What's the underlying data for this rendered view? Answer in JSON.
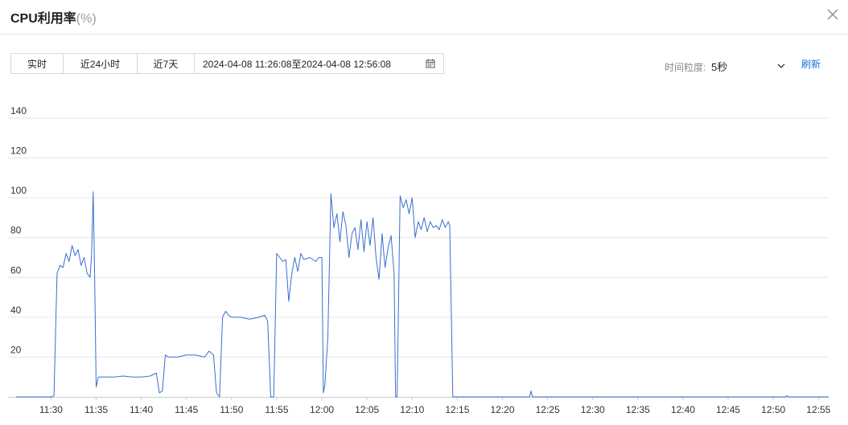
{
  "header": {
    "title": "CPU利用率",
    "unit": "(%)"
  },
  "toolbar": {
    "realtime_label": "实时",
    "h24_label": "近24小时",
    "d7_label": "近7天",
    "range_text": "2024-04-08 11:26:08至2024-04-08 12:56:08"
  },
  "granularity": {
    "label": "时间粒度:",
    "value": "5秒"
  },
  "refresh_label": "刷新",
  "icons": {
    "close": "close-icon",
    "calendar": "calendar-icon",
    "dropdown": "chevron-down-icon"
  },
  "colors": {
    "line": "#3a6fd0",
    "grid": "#e6e6e6",
    "accent": "#1a6fe0"
  },
  "chart_data": {
    "type": "line",
    "title": "",
    "xlabel": "",
    "ylabel": "",
    "ylim": [
      0,
      140
    ],
    "grid": true,
    "yticks": [
      20,
      40,
      60,
      80,
      100,
      120,
      140
    ],
    "xticks": [
      "11:30",
      "11:35",
      "11:40",
      "11:45",
      "11:50",
      "11:55",
      "12:00",
      "12:05",
      "12:10",
      "12:15",
      "12:20",
      "12:25",
      "12:30",
      "12:35",
      "12:40",
      "12:45",
      "12:50",
      "12:55"
    ],
    "x_unit": "time of day (2024-04-08)",
    "x_range": [
      "11:26:08",
      "12:56:08"
    ],
    "series": [
      {
        "points": [
          [
            "11:26:08",
            0
          ],
          [
            "11:30:00",
            0
          ],
          [
            "11:30:20",
            0.5
          ],
          [
            "11:30:40",
            62
          ],
          [
            "11:31:00",
            66
          ],
          [
            "11:31:20",
            65
          ],
          [
            "11:31:40",
            72
          ],
          [
            "11:32:00",
            68
          ],
          [
            "11:32:20",
            76
          ],
          [
            "11:32:40",
            71
          ],
          [
            "11:33:00",
            74
          ],
          [
            "11:33:20",
            66
          ],
          [
            "11:33:40",
            70
          ],
          [
            "11:34:00",
            62
          ],
          [
            "11:34:20",
            60
          ],
          [
            "11:34:30",
            72
          ],
          [
            "11:34:40",
            103
          ],
          [
            "11:34:50",
            62
          ],
          [
            "11:35:00",
            5
          ],
          [
            "11:35:15",
            10
          ],
          [
            "11:36:00",
            10
          ],
          [
            "11:37:00",
            10
          ],
          [
            "11:38:00",
            10.5
          ],
          [
            "11:39:00",
            10
          ],
          [
            "11:40:00",
            10
          ],
          [
            "11:41:00",
            10.5
          ],
          [
            "11:41:40",
            12
          ],
          [
            "11:42:00",
            2
          ],
          [
            "11:42:20",
            3
          ],
          [
            "11:42:40",
            21
          ],
          [
            "11:43:00",
            20
          ],
          [
            "11:44:00",
            20
          ],
          [
            "11:45:00",
            21
          ],
          [
            "11:46:00",
            21
          ],
          [
            "11:47:00",
            20
          ],
          [
            "11:47:30",
            23
          ],
          [
            "11:48:00",
            21
          ],
          [
            "11:48:20",
            2
          ],
          [
            "11:48:40",
            0
          ],
          [
            "11:49:00",
            40
          ],
          [
            "11:49:20",
            43
          ],
          [
            "11:49:40",
            41
          ],
          [
            "11:50:00",
            40
          ],
          [
            "11:51:00",
            40
          ],
          [
            "11:52:00",
            39
          ],
          [
            "11:53:00",
            40
          ],
          [
            "11:53:40",
            41
          ],
          [
            "11:54:00",
            38
          ],
          [
            "11:54:20",
            0
          ],
          [
            "11:54:40",
            0
          ],
          [
            "11:55:00",
            72
          ],
          [
            "11:55:20",
            70
          ],
          [
            "11:55:40",
            68
          ],
          [
            "11:56:00",
            69
          ],
          [
            "11:56:20",
            48
          ],
          [
            "11:56:40",
            62
          ],
          [
            "11:57:00",
            70
          ],
          [
            "11:57:20",
            63
          ],
          [
            "11:57:40",
            72
          ],
          [
            "11:58:00",
            69
          ],
          [
            "11:58:40",
            70
          ],
          [
            "11:59:20",
            68
          ],
          [
            "11:59:40",
            70
          ],
          [
            "12:00:00",
            70
          ],
          [
            "12:00:10",
            2
          ],
          [
            "12:00:20",
            6
          ],
          [
            "12:00:40",
            30
          ],
          [
            "12:01:00",
            102
          ],
          [
            "12:01:20",
            85
          ],
          [
            "12:01:40",
            92
          ],
          [
            "12:02:00",
            78
          ],
          [
            "12:02:20",
            93
          ],
          [
            "12:02:40",
            86
          ],
          [
            "12:03:00",
            70
          ],
          [
            "12:03:20",
            82
          ],
          [
            "12:03:40",
            85
          ],
          [
            "12:04:00",
            74
          ],
          [
            "12:04:20",
            89
          ],
          [
            "12:04:40",
            73
          ],
          [
            "12:05:00",
            88
          ],
          [
            "12:05:20",
            76
          ],
          [
            "12:05:40",
            90
          ],
          [
            "12:06:00",
            70
          ],
          [
            "12:06:20",
            59
          ],
          [
            "12:06:40",
            82
          ],
          [
            "12:07:00",
            65
          ],
          [
            "12:07:20",
            75
          ],
          [
            "12:07:40",
            81
          ],
          [
            "12:08:00",
            62
          ],
          [
            "12:08:10",
            0
          ],
          [
            "12:08:20",
            0
          ],
          [
            "12:08:40",
            101
          ],
          [
            "12:09:00",
            95
          ],
          [
            "12:09:20",
            99
          ],
          [
            "12:09:40",
            92
          ],
          [
            "12:10:00",
            100
          ],
          [
            "12:10:20",
            80
          ],
          [
            "12:10:40",
            88
          ],
          [
            "12:11:00",
            84
          ],
          [
            "12:11:20",
            90
          ],
          [
            "12:11:40",
            83
          ],
          [
            "12:12:00",
            88
          ],
          [
            "12:12:20",
            85
          ],
          [
            "12:12:40",
            86
          ],
          [
            "12:13:00",
            84
          ],
          [
            "12:13:20",
            89
          ],
          [
            "12:13:40",
            85
          ],
          [
            "12:14:00",
            88
          ],
          [
            "12:14:10",
            86
          ],
          [
            "12:14:30",
            0
          ],
          [
            "12:20:00",
            0
          ],
          [
            "12:23:00",
            0
          ],
          [
            "12:23:10",
            3
          ],
          [
            "12:23:20",
            0
          ],
          [
            "12:51:20",
            0
          ],
          [
            "12:51:30",
            0.6
          ],
          [
            "12:51:40",
            0
          ],
          [
            "12:56:08",
            0
          ]
        ]
      }
    ]
  }
}
